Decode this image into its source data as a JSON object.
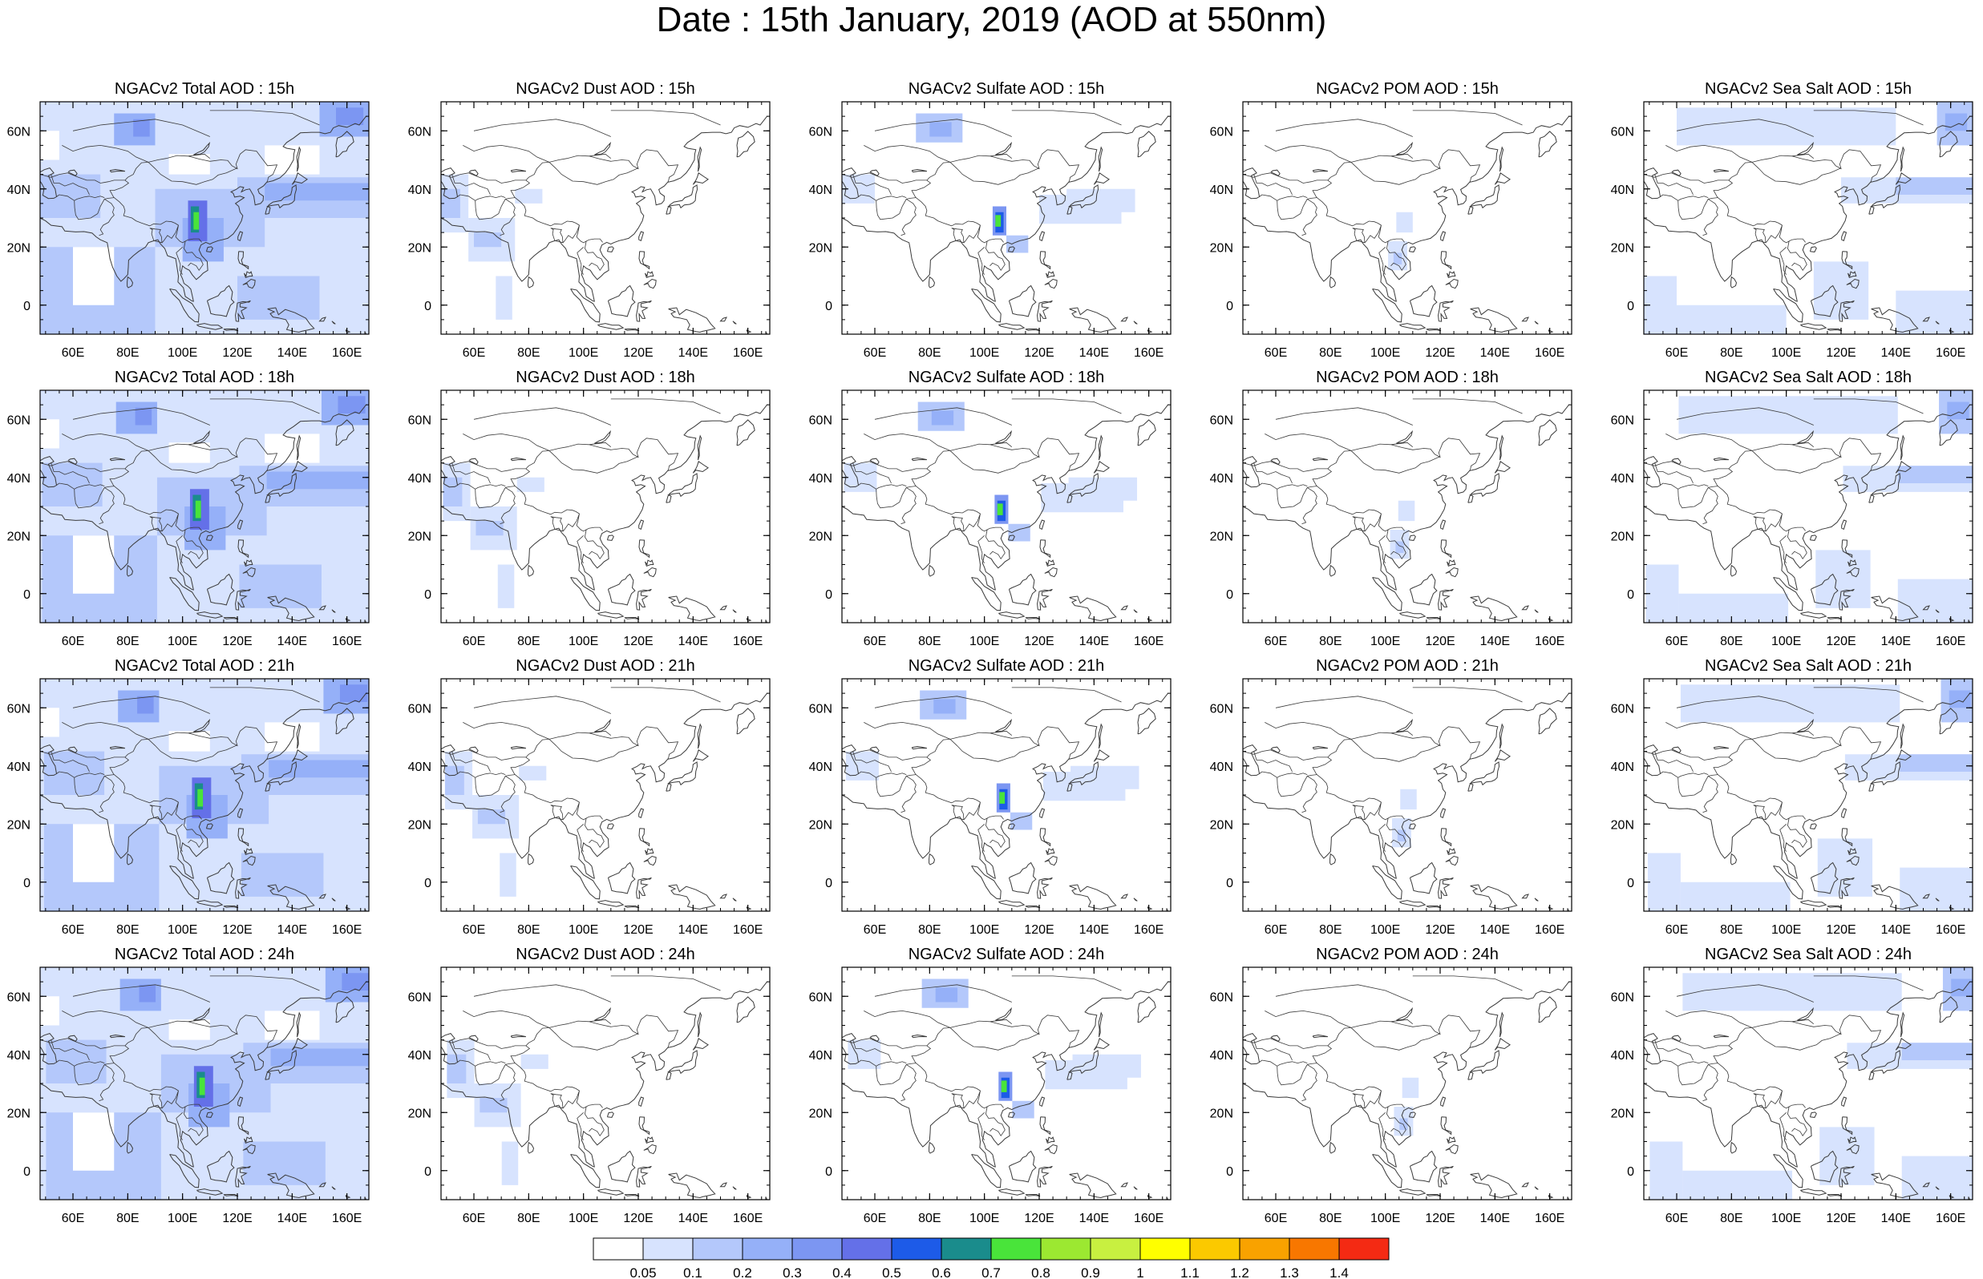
{
  "title": "Date : 15th January, 2019 (AOD at 550nm)",
  "lon_ticks": [
    "60E",
    "80E",
    "100E",
    "120E",
    "140E",
    "160E"
  ],
  "lat_ticks": [
    "60N",
    "40N",
    "20N",
    "0"
  ],
  "panels": [
    {
      "title": "NGACv2 Total AOD : 15h",
      "species": "total",
      "hour": "15h"
    },
    {
      "title": "NGACv2 Dust AOD : 15h",
      "species": "dust",
      "hour": "15h"
    },
    {
      "title": "NGACv2 Sulfate AOD : 15h",
      "species": "sulfate",
      "hour": "15h"
    },
    {
      "title": "NGACv2 POM AOD : 15h",
      "species": "pom",
      "hour": "15h"
    },
    {
      "title": "NGACv2 Sea Salt AOD : 15h",
      "species": "seasalt",
      "hour": "15h"
    },
    {
      "title": "NGACv2 Total AOD : 18h",
      "species": "total",
      "hour": "18h"
    },
    {
      "title": "NGACv2 Dust AOD : 18h",
      "species": "dust",
      "hour": "18h"
    },
    {
      "title": "NGACv2 Sulfate AOD : 18h",
      "species": "sulfate",
      "hour": "18h"
    },
    {
      "title": "NGACv2 POM AOD : 18h",
      "species": "pom",
      "hour": "18h"
    },
    {
      "title": "NGACv2 Sea Salt AOD : 18h",
      "species": "seasalt",
      "hour": "18h"
    },
    {
      "title": "NGACv2 Total AOD : 21h",
      "species": "total",
      "hour": "21h"
    },
    {
      "title": "NGACv2 Dust AOD : 21h",
      "species": "dust",
      "hour": "21h"
    },
    {
      "title": "NGACv2 Sulfate AOD : 21h",
      "species": "sulfate",
      "hour": "21h"
    },
    {
      "title": "NGACv2 POM AOD : 21h",
      "species": "pom",
      "hour": "21h"
    },
    {
      "title": "NGACv2 Sea Salt AOD : 21h",
      "species": "seasalt",
      "hour": "21h"
    },
    {
      "title": "NGACv2 Total AOD : 24h",
      "species": "total",
      "hour": "24h"
    },
    {
      "title": "NGACv2 Dust AOD : 24h",
      "species": "dust",
      "hour": "24h"
    },
    {
      "title": "NGACv2 Sulfate AOD : 24h",
      "species": "sulfate",
      "hour": "24h"
    },
    {
      "title": "NGACv2 POM AOD : 24h",
      "species": "pom",
      "hour": "24h"
    },
    {
      "title": "NGACv2 Sea Salt  AOD : 24h",
      "species": "seasalt",
      "hour": "24h"
    }
  ],
  "colorbar": {
    "labels": [
      "0.05",
      "0.1",
      "0.2",
      "0.3",
      "0.4",
      "0.5",
      "0.6",
      "0.7",
      "0.8",
      "0.9",
      "1",
      "1.1",
      "1.2",
      "1.3",
      "1.4"
    ],
    "colors": [
      "#ffffff",
      "#d7e3fe",
      "#b4c8fb",
      "#95b0f8",
      "#7c96f2",
      "#6470e8",
      "#1d5be8",
      "#1a8c8c",
      "#49e43a",
      "#9ce831",
      "#c8f040",
      "#ffff00",
      "#fbc900",
      "#f9a200",
      "#f87700",
      "#f42a13"
    ]
  },
  "colors": {
    "map_background": "#ffffff",
    "coastline": "#3a3a3a",
    "frame": "#000000"
  }
}
